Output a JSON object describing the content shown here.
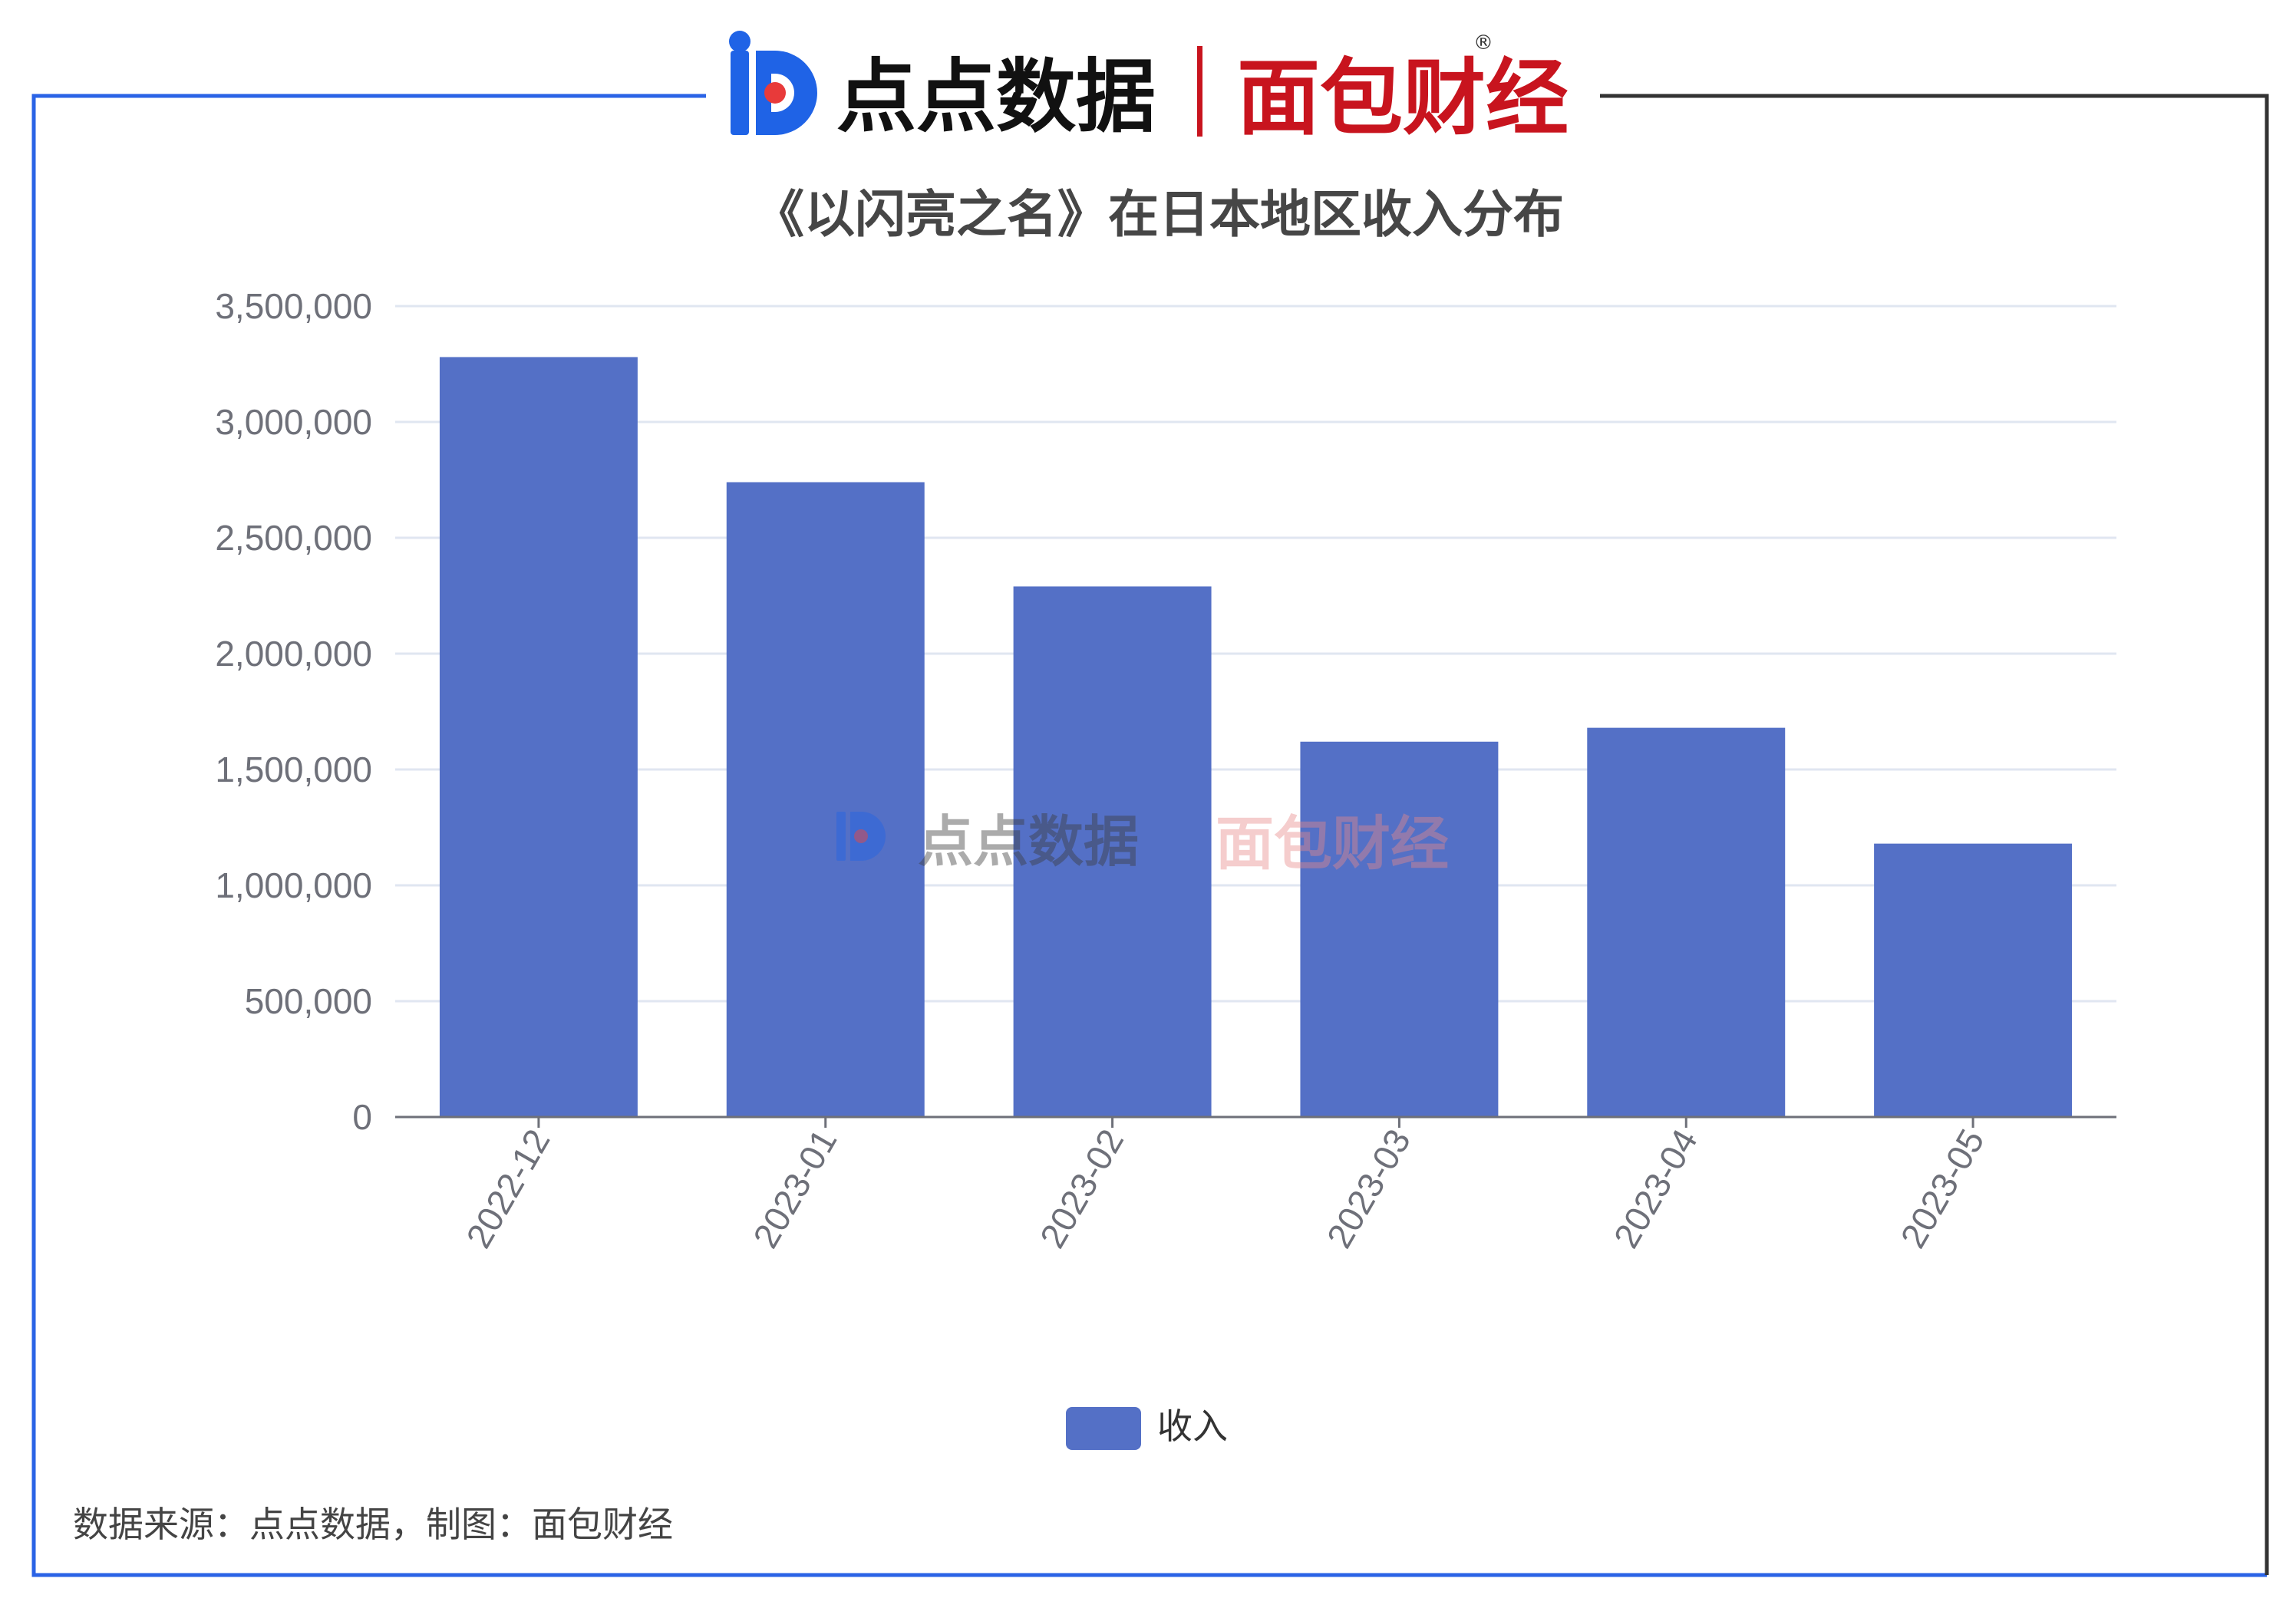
{
  "header": {
    "brand_left": "点点数据",
    "brand_right": "面包财经",
    "registered_mark": "®",
    "brand_left_color": "#1f63e6",
    "brand_right_color": "#c8141e"
  },
  "watermark": {
    "brand_left": "点点数据",
    "brand_right": "面包财经"
  },
  "footer": {
    "source_text": "数据来源：点点数据，制图：面包财经"
  },
  "colors": {
    "frame_left": "#2a63e6",
    "frame_right": "#333333",
    "bar": "#5470c6",
    "grid": "#e0e6f1",
    "axis": "#6e7079",
    "tick_text": "#6e7079",
    "title_text": "#464646"
  },
  "chart_data": {
    "type": "bar",
    "title": "《以闪亮之名》在日本地区收入分布",
    "categories": [
      "2022-12",
      "2023-01",
      "2023-02",
      "2023-03",
      "2023-04",
      "2023-05"
    ],
    "series": [
      {
        "name": "收入",
        "values": [
          3280000,
          2740000,
          2290000,
          1620000,
          1680000,
          1180000
        ]
      }
    ],
    "yticks": [
      "0",
      "500,000",
      "1,000,000",
      "1,500,000",
      "2,000,000",
      "2,500,000",
      "3,000,000",
      "3,500,000"
    ],
    "ylim": [
      0,
      3500000
    ],
    "grid": true,
    "legend_position": "bottom-center"
  }
}
